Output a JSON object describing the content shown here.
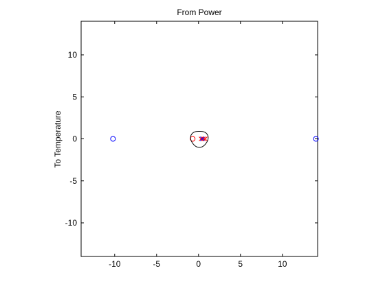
{
  "chart_data": {
    "type": "scatter",
    "title": "From Power",
    "xlabel": "",
    "ylabel": "To Temperature",
    "xlim": [
      -14,
      14.2
    ],
    "ylim": [
      -14,
      14
    ],
    "xticks": [
      -10,
      -5,
      0,
      5,
      10
    ],
    "yticks": [
      -10,
      -5,
      0,
      5,
      10
    ],
    "grid": false,
    "series": [
      {
        "marker": "o",
        "color": "#0000ff",
        "points": [
          [
            -10.2,
            0
          ],
          [
            14.0,
            0
          ]
        ]
      },
      {
        "marker": "o",
        "color": "#ff0000",
        "points": [
          [
            -0.7,
            0
          ]
        ]
      },
      {
        "marker": "x",
        "color": "#ff0000",
        "points": [
          [
            0.3,
            0
          ],
          [
            0.6,
            0
          ],
          [
            0.8,
            0
          ]
        ]
      },
      {
        "marker": "x",
        "color": "#0000ff",
        "points": [
          [
            0.45,
            0
          ]
        ]
      },
      {
        "marker": "curve",
        "color": "#000000",
        "circle": {
          "center": [
            0.1,
            0
          ],
          "radius": 1.0
        }
      }
    ]
  }
}
